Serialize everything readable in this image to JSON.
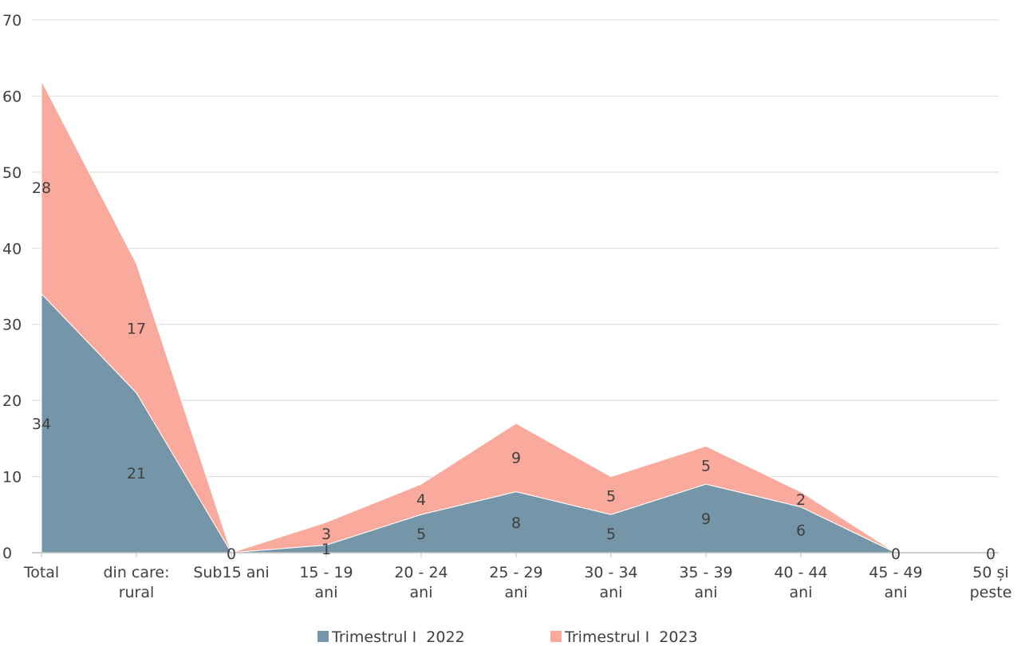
{
  "chart_data": {
    "type": "area",
    "stacked": true,
    "title": "",
    "xlabel": "",
    "ylabel": "",
    "ylim": [
      0,
      70
    ],
    "yticks": [
      0,
      10,
      20,
      30,
      40,
      50,
      60,
      70
    ],
    "grid": true,
    "legend_position": "bottom",
    "categories": [
      [
        "Total"
      ],
      [
        "din care:",
        "rural"
      ],
      [
        "Sub15 ani"
      ],
      [
        "15 - 19",
        "ani"
      ],
      [
        "20 - 24",
        "ani"
      ],
      [
        "25 - 29",
        "ani"
      ],
      [
        "30 - 34",
        "ani"
      ],
      [
        "35 - 39",
        "ani"
      ],
      [
        "40 - 44",
        "ani"
      ],
      [
        "45 - 49",
        "ani"
      ],
      [
        "50 și",
        "peste"
      ]
    ],
    "series": [
      {
        "name": "Trimestrul I  2022",
        "color": "#7596a8",
        "values": [
          34,
          21,
          0,
          1,
          5,
          8,
          5,
          9,
          6,
          0,
          0
        ]
      },
      {
        "name": "Trimestrul I  2023",
        "color": "#f9aa9d",
        "values": [
          28,
          17,
          0,
          3,
          4,
          9,
          5,
          5,
          2,
          0,
          0
        ]
      }
    ]
  }
}
